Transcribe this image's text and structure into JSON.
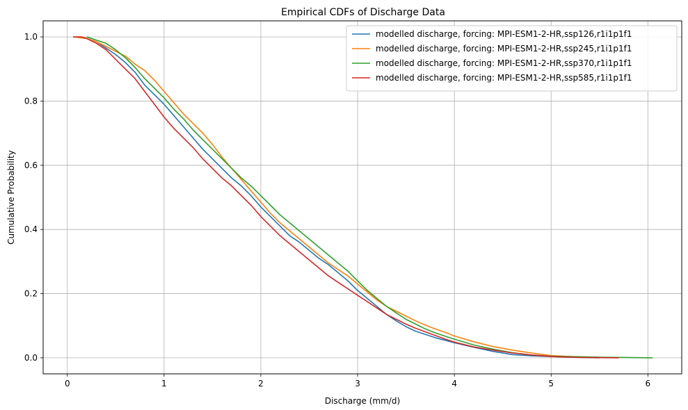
{
  "chart_data": {
    "type": "line",
    "title": "Empirical CDFs of Discharge Data",
    "xlabel": "Discharge (mm/d)",
    "ylabel": "Cumulative Probability",
    "xlim": [
      -0.25,
      6.35
    ],
    "ylim": [
      -0.05,
      1.05
    ],
    "xticks": [
      0,
      1,
      2,
      3,
      4,
      5,
      6
    ],
    "yticks": [
      0.0,
      0.2,
      0.4,
      0.6,
      0.8,
      1.0
    ],
    "xtick_labels": [
      "0",
      "1",
      "2",
      "3",
      "4",
      "5",
      "6"
    ],
    "ytick_labels": [
      "0.0",
      "0.2",
      "0.4",
      "0.6",
      "0.8",
      "1.0"
    ],
    "grid": true,
    "legend_position": "top-right",
    "series": [
      {
        "name": "modelled discharge, forcing: MPI-ESM1-2-HR,ssp126,r1i1p1f1",
        "color": "#1f77b4",
        "x": [
          0.06,
          0.2,
          0.3,
          0.4,
          0.5,
          0.6,
          0.7,
          0.8,
          0.9,
          1.0,
          1.1,
          1.2,
          1.3,
          1.4,
          1.5,
          1.6,
          1.7,
          1.8,
          1.9,
          2.0,
          2.1,
          2.2,
          2.3,
          2.4,
          2.5,
          2.6,
          2.7,
          2.8,
          2.9,
          3.0,
          3.1,
          3.2,
          3.3,
          3.4,
          3.5,
          3.6,
          3.7,
          3.8,
          3.9,
          4.0,
          4.2,
          4.4,
          4.6,
          4.8,
          5.0,
          5.2,
          5.5
        ],
        "y": [
          1.0,
          0.995,
          0.985,
          0.965,
          0.945,
          0.92,
          0.89,
          0.85,
          0.82,
          0.79,
          0.755,
          0.72,
          0.685,
          0.65,
          0.62,
          0.59,
          0.56,
          0.535,
          0.505,
          0.47,
          0.44,
          0.41,
          0.38,
          0.36,
          0.335,
          0.31,
          0.29,
          0.265,
          0.24,
          0.21,
          0.185,
          0.16,
          0.135,
          0.115,
          0.097,
          0.083,
          0.073,
          0.063,
          0.055,
          0.047,
          0.033,
          0.02,
          0.01,
          0.006,
          0.004,
          0.002,
          0.0
        ]
      },
      {
        "name": "modelled discharge, forcing: MPI-ESM1-2-HR,ssp245,r1i1p1f1",
        "color": "#ff7f0e",
        "x": [
          0.06,
          0.2,
          0.3,
          0.4,
          0.5,
          0.6,
          0.7,
          0.8,
          0.9,
          1.0,
          1.1,
          1.2,
          1.3,
          1.4,
          1.5,
          1.6,
          1.7,
          1.8,
          1.9,
          2.0,
          2.1,
          2.2,
          2.3,
          2.4,
          2.5,
          2.6,
          2.7,
          2.8,
          2.9,
          3.0,
          3.1,
          3.2,
          3.3,
          3.4,
          3.5,
          3.6,
          3.7,
          3.8,
          3.9,
          4.0,
          4.2,
          4.4,
          4.6,
          4.8,
          5.0,
          5.2,
          5.5
        ],
        "y": [
          1.0,
          0.995,
          0.985,
          0.97,
          0.955,
          0.94,
          0.915,
          0.895,
          0.865,
          0.83,
          0.795,
          0.76,
          0.73,
          0.7,
          0.665,
          0.625,
          0.59,
          0.555,
          0.52,
          0.485,
          0.45,
          0.42,
          0.395,
          0.37,
          0.345,
          0.32,
          0.295,
          0.275,
          0.255,
          0.23,
          0.205,
          0.18,
          0.16,
          0.145,
          0.13,
          0.115,
          0.102,
          0.09,
          0.08,
          0.068,
          0.05,
          0.035,
          0.024,
          0.015,
          0.007,
          0.004,
          0.002
        ]
      },
      {
        "name": "modelled discharge, forcing: MPI-ESM1-2-HR,ssp370,r1i1p1f1",
        "color": "#2ca02c",
        "x": [
          0.2,
          0.3,
          0.4,
          0.5,
          0.6,
          0.7,
          0.8,
          0.9,
          1.0,
          1.1,
          1.2,
          1.3,
          1.4,
          1.5,
          1.6,
          1.7,
          1.8,
          1.9,
          2.0,
          2.1,
          2.2,
          2.3,
          2.4,
          2.5,
          2.6,
          2.7,
          2.8,
          2.9,
          3.0,
          3.1,
          3.2,
          3.3,
          3.4,
          3.5,
          3.6,
          3.7,
          3.8,
          3.9,
          4.0,
          4.2,
          4.4,
          4.6,
          4.8,
          5.0,
          5.5,
          6.05
        ],
        "y": [
          1.0,
          0.99,
          0.98,
          0.96,
          0.935,
          0.905,
          0.87,
          0.84,
          0.81,
          0.775,
          0.745,
          0.71,
          0.68,
          0.65,
          0.62,
          0.59,
          0.56,
          0.535,
          0.505,
          0.475,
          0.445,
          0.42,
          0.395,
          0.37,
          0.345,
          0.32,
          0.295,
          0.27,
          0.24,
          0.21,
          0.185,
          0.16,
          0.14,
          0.12,
          0.105,
          0.09,
          0.078,
          0.068,
          0.058,
          0.04,
          0.027,
          0.016,
          0.009,
          0.005,
          0.002,
          0.0
        ]
      },
      {
        "name": "modelled discharge, forcing: MPI-ESM1-2-HR,ssp585,r1i1p1f1",
        "color": "#d62728",
        "x": [
          0.06,
          0.15,
          0.2,
          0.3,
          0.4,
          0.5,
          0.6,
          0.7,
          0.8,
          0.9,
          1.0,
          1.1,
          1.2,
          1.3,
          1.4,
          1.5,
          1.6,
          1.7,
          1.8,
          1.9,
          2.0,
          2.1,
          2.2,
          2.3,
          2.4,
          2.5,
          2.6,
          2.7,
          2.8,
          2.9,
          3.0,
          3.1,
          3.2,
          3.3,
          3.4,
          3.5,
          3.6,
          3.7,
          3.8,
          3.9,
          4.0,
          4.2,
          4.4,
          4.6,
          4.8,
          5.0,
          5.3,
          5.7
        ],
        "y": [
          1.0,
          1.0,
          0.995,
          0.98,
          0.96,
          0.93,
          0.9,
          0.87,
          0.83,
          0.79,
          0.75,
          0.715,
          0.685,
          0.655,
          0.62,
          0.59,
          0.56,
          0.535,
          0.505,
          0.475,
          0.44,
          0.41,
          0.38,
          0.355,
          0.33,
          0.305,
          0.28,
          0.255,
          0.235,
          0.215,
          0.195,
          0.175,
          0.155,
          0.135,
          0.12,
          0.105,
          0.092,
          0.081,
          0.07,
          0.059,
          0.049,
          0.034,
          0.024,
          0.015,
          0.009,
          0.004,
          0.001,
          0.0
        ]
      }
    ]
  }
}
